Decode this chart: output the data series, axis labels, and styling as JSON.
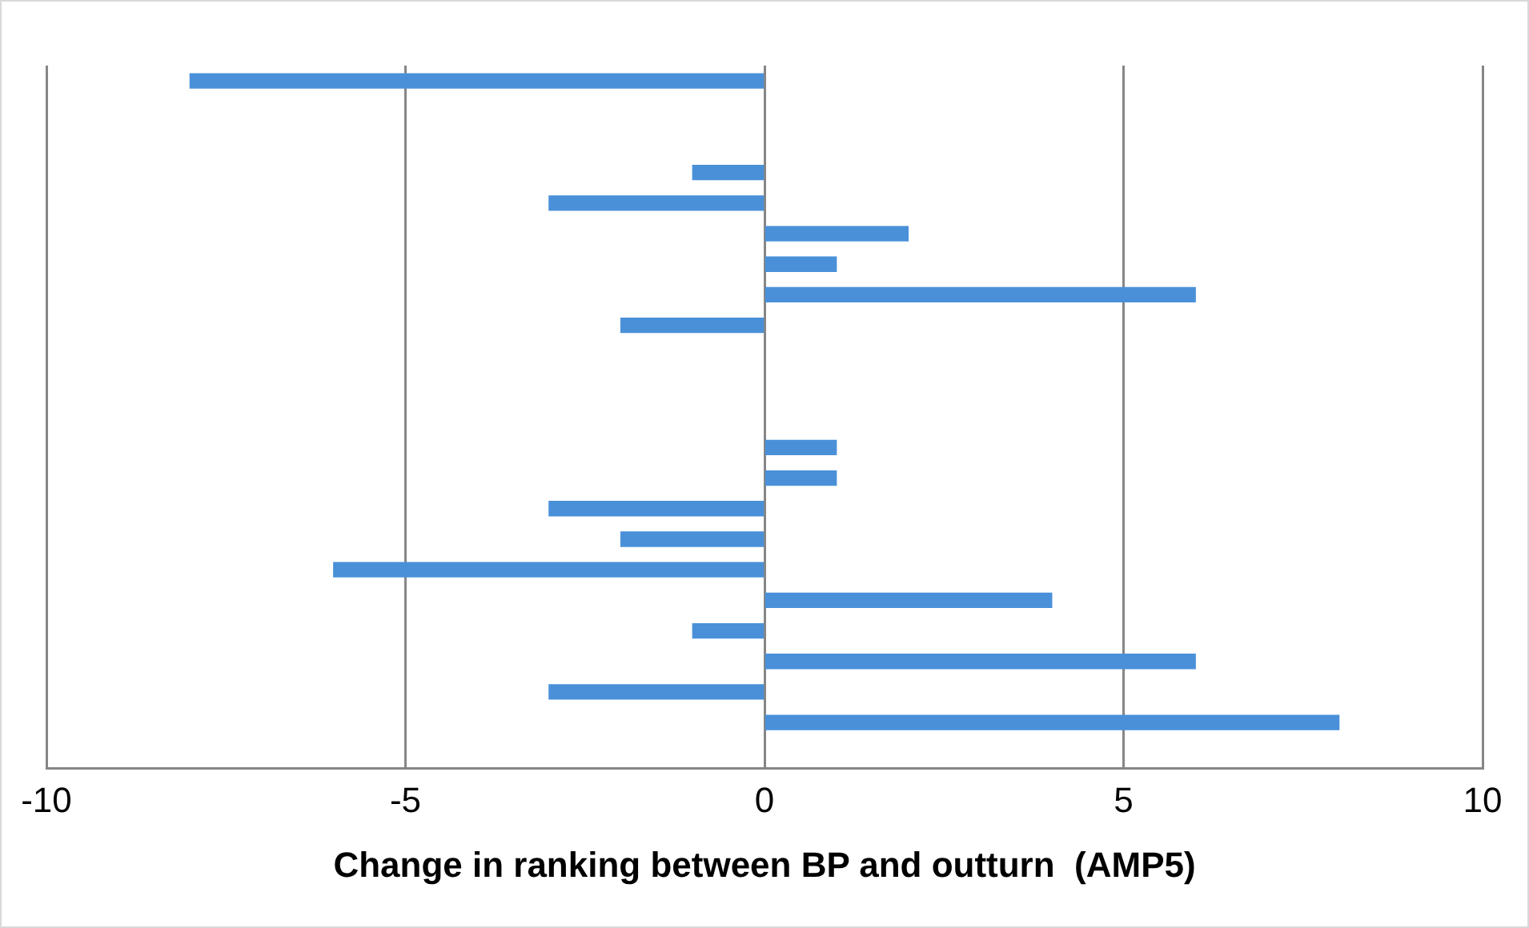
{
  "chart_data": {
    "type": "bar",
    "orientation": "horizontal",
    "xlabel": "Change in ranking between BP and outturn  (AMP5)",
    "categories": [
      null,
      null,
      null,
      null,
      null,
      null,
      null,
      null,
      null,
      null,
      null,
      null,
      null,
      null,
      null,
      null,
      null,
      null,
      null,
      null,
      null,
      null,
      null
    ],
    "values": [
      -8,
      null,
      null,
      -1,
      -3,
      2,
      1,
      6,
      -2,
      null,
      null,
      null,
      1,
      1,
      -3,
      -2,
      -6,
      4,
      -1,
      6,
      -3,
      8,
      null
    ],
    "color": "#4a90d9",
    "xlim": [
      -10,
      10
    ],
    "xticks": [
      -10,
      -5,
      0,
      5,
      10
    ],
    "grid": "x",
    "tick_labels": "x"
  }
}
